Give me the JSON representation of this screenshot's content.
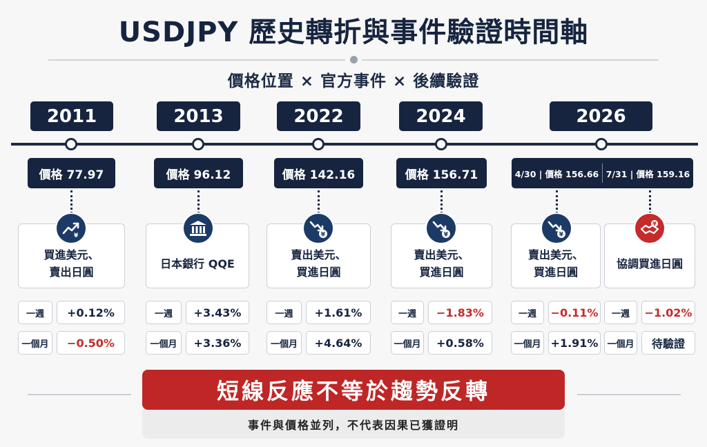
{
  "title": "USDJPY 歷史轉折與事件驗證時間軸",
  "subtitle": "價格位置 × 官方事件 × 後續驗證",
  "row_labels": {
    "week": "一週",
    "month": "一個月"
  },
  "events": [
    {
      "year": "2011",
      "price": "價格 77.97",
      "icon": "trend-up-yen-icon",
      "action": "買進美元、\n賣出日圓",
      "week": "+0.12%",
      "month": "−0.50%"
    },
    {
      "year": "2013",
      "price": "價格 96.12",
      "icon": "bank-building-icon",
      "action": "日本銀行 QQE",
      "week": "+3.43%",
      "month": "+3.36%"
    },
    {
      "year": "2022",
      "price": "價格 142.16",
      "icon": "trend-down-yen-icon",
      "action": "賣出美元、\n買進日圓",
      "week": "+1.61%",
      "month": "+4.64%"
    },
    {
      "year": "2024",
      "price": "價格 156.71",
      "icon": "trend-down-yen-icon",
      "action": "賣出美元、\n買進日圓",
      "week": "−1.83%",
      "month": "+0.58%"
    },
    {
      "year": "2026",
      "price_a": "4/30 | 價格 156.66",
      "price_b": "7/31 | 價格 159.16",
      "a": {
        "icon": "trend-down-yen-icon",
        "action": "賣出美元、\n買進日圓",
        "week": "−0.11%",
        "month": "+1.91%"
      },
      "b": {
        "icon": "handshake-yen-icon",
        "action": "協調買進日圓",
        "week": "−1.02%",
        "month": "待驗證"
      }
    }
  ],
  "banner": "短線反應不等於趨勢反轉",
  "note": "事件與價格並列，不代表因果已獲證明",
  "colors": {
    "navy": "#16243f",
    "red": "#c62a2a",
    "badge_blue": "#1c3a66"
  }
}
